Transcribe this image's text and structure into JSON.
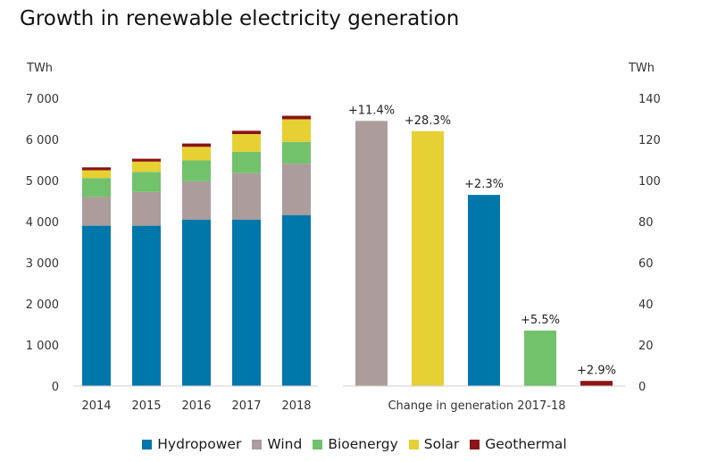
{
  "title": "Growth in renewable electricity generation",
  "colors": {
    "Hydropower": "#0077aa",
    "Wind": "#ac9c9c",
    "Bioenergy": "#72c26b",
    "Solar": "#e6d032",
    "Geothermal": "#8b1414"
  },
  "chart_data": [
    {
      "type": "bar",
      "stacked": true,
      "title": "",
      "ylabel": "TWh",
      "ylim": [
        0,
        7000
      ],
      "yticks": [
        "0",
        "1 000",
        "2 000",
        "3 000",
        "4 000",
        "5 000",
        "6 000",
        "7 000"
      ],
      "categories": [
        "2014",
        "2015",
        "2016",
        "2017",
        "2018"
      ],
      "series": [
        {
          "name": "Hydropower",
          "values": [
            3900,
            3900,
            4050,
            4050,
            4160
          ]
        },
        {
          "name": "Wind",
          "values": [
            700,
            820,
            930,
            1130,
            1250
          ]
        },
        {
          "name": "Bioenergy",
          "values": [
            460,
            490,
            510,
            520,
            530
          ]
        },
        {
          "name": "Solar",
          "values": [
            190,
            250,
            330,
            430,
            550
          ]
        },
        {
          "name": "Geothermal",
          "values": [
            70,
            70,
            80,
            80,
            85
          ]
        }
      ],
      "grid": false
    },
    {
      "type": "bar",
      "title": "",
      "xlabel": "Change in generation 2017-18",
      "ylabel": "TWh",
      "ylim": [
        0,
        140
      ],
      "yticks": [
        "0",
        "20",
        "40",
        "60",
        "80",
        "100",
        "120",
        "140"
      ],
      "categories": [
        "Wind",
        "Solar",
        "Hydropower",
        "Bioenergy",
        "Geothermal"
      ],
      "values": [
        129,
        124,
        93,
        27,
        2.5
      ],
      "data_labels": [
        "+11.4%",
        "+28.3%",
        "+2.3%",
        "+5.5%",
        "+2.9%"
      ],
      "grid": false
    }
  ],
  "legend": [
    {
      "label": "Hydropower",
      "color": "#0077aa"
    },
    {
      "label": "Wind",
      "color": "#ac9c9c"
    },
    {
      "label": "Bioenergy",
      "color": "#72c26b"
    },
    {
      "label": "Solar",
      "color": "#e6d032"
    },
    {
      "label": "Geothermal",
      "color": "#8b1414"
    }
  ]
}
